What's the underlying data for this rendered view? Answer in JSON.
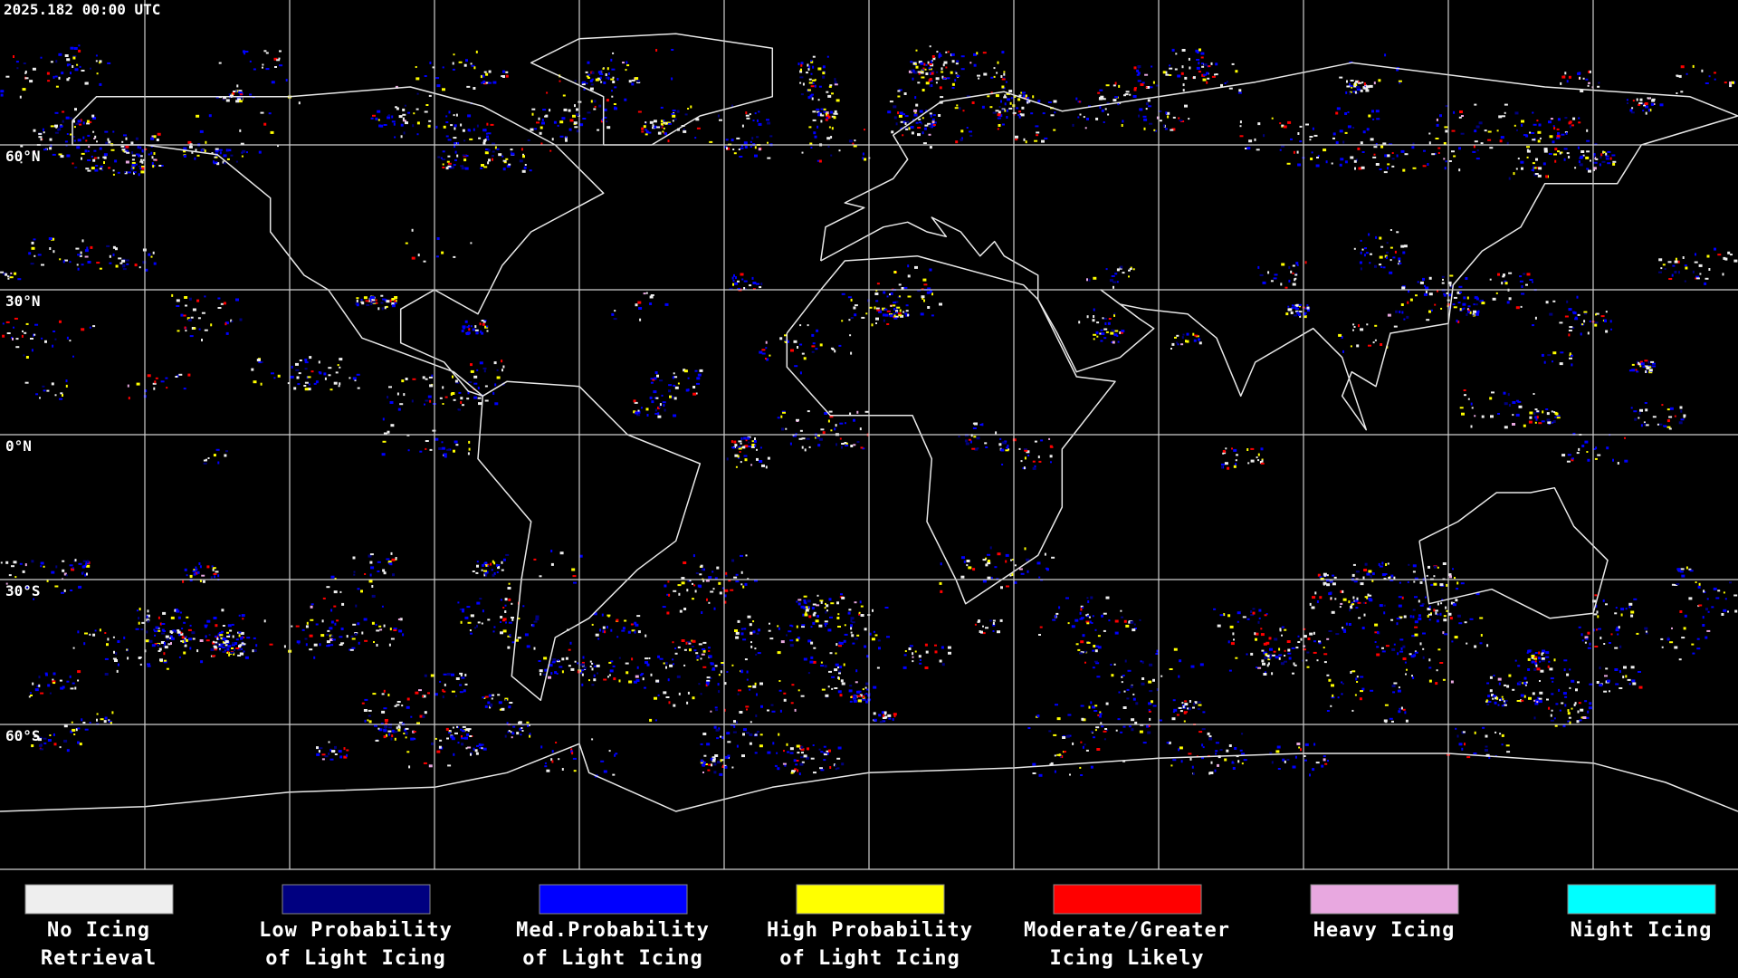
{
  "timestamp": "2025.182 00:00 UTC",
  "latitude_labels": [
    "60°N",
    "30°N",
    "0°N",
    "30°S",
    "60°S"
  ],
  "legend": [
    {
      "label": [
        "No Icing",
        "Retrieval"
      ],
      "color": "#eeeeee"
    },
    {
      "label": [
        "Low Probability",
        "of Light Icing"
      ],
      "color": "#000080"
    },
    {
      "label": [
        "Med.Probability",
        "of Light Icing"
      ],
      "color": "#0000ff"
    },
    {
      "label": [
        "High Probability",
        "of Light Icing"
      ],
      "color": "#ffff00"
    },
    {
      "label": [
        "Moderate/Greater",
        "Icing Likely"
      ],
      "color": "#ff0000"
    },
    {
      "label": [
        "Heavy Icing",
        ""
      ],
      "color": "#e8a8e0"
    },
    {
      "label": [
        "Night Icing",
        ""
      ],
      "color": "#00ffff"
    }
  ]
}
